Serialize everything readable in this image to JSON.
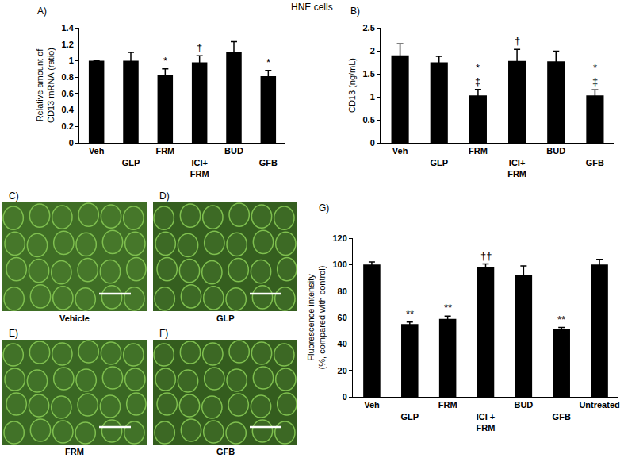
{
  "figure_title": "HNE cells",
  "chart_data": [
    {
      "type": "bar",
      "title": "A)",
      "y_label": [
        "Relative amount of",
        "CD13 mRNA (ratio)"
      ],
      "categories": [
        "Veh",
        "GLP",
        "FRM",
        "ICI+ FRM",
        "BUD",
        "GFB"
      ],
      "values": [
        1.0,
        1.0,
        0.82,
        0.98,
        1.1,
        0.81
      ],
      "error": [
        0,
        0.1,
        0.08,
        0.08,
        0.13,
        0.07
      ],
      "color": "#000000",
      "ylim": [
        0,
        1.4
      ],
      "yticks": [
        0,
        0.2,
        0.4,
        0.6,
        0.8,
        1,
        1.2,
        1.4
      ],
      "grid": false,
      "annotations": [
        {
          "category": "FRM",
          "text": "*"
        },
        {
          "category": "ICI+ FRM",
          "text": "†"
        },
        {
          "category": "GFB",
          "text": "*"
        }
      ]
    },
    {
      "type": "bar",
      "title": "B)",
      "y_label": [
        "CD13 (ng/mL)"
      ],
      "categories": [
        "Veh",
        "GLP",
        "FRM",
        "ICI+ FRM",
        "BUD",
        "GFB"
      ],
      "values": [
        1.9,
        1.75,
        1.03,
        1.78,
        1.77,
        1.03
      ],
      "error": [
        0.25,
        0.13,
        0.13,
        0.25,
        0.22,
        0.12
      ],
      "color": "#000000",
      "ylim": [
        0,
        2.5
      ],
      "yticks": [
        0,
        0.5,
        1,
        1.5,
        2,
        2.5
      ],
      "grid": false,
      "annotations": [
        {
          "category": "FRM",
          "text": [
            "*",
            "‡"
          ]
        },
        {
          "category": "ICI+ FRM",
          "text": "†"
        },
        {
          "category": "GFB",
          "text": [
            "*",
            "‡"
          ]
        }
      ]
    },
    {
      "type": "bar",
      "title": "G)",
      "y_label": [
        "Fluorescence intensity",
        "(%, compared with control)"
      ],
      "categories": [
        "Veh",
        "GLP",
        "FRM",
        "ICI + FRM",
        "BUD",
        "GFB",
        "Untreated"
      ],
      "values": [
        100,
        55,
        59,
        98,
        92,
        51,
        100
      ],
      "error": [
        2,
        1.5,
        2,
        2.5,
        7,
        1.5,
        4
      ],
      "color": "#000000",
      "ylim": [
        0,
        120
      ],
      "yticks": [
        0,
        20,
        40,
        60,
        80,
        100,
        120
      ],
      "grid": false,
      "annotations": [
        {
          "category": "GLP",
          "text": "**"
        },
        {
          "category": "FRM",
          "text": "**"
        },
        {
          "category": "ICI + FRM",
          "text": "††"
        },
        {
          "category": "GFB",
          "text": "**"
        }
      ]
    }
  ],
  "image_panels": [
    {
      "panel": "C)",
      "label": "Vehicle"
    },
    {
      "panel": "D)",
      "label": "GLP"
    },
    {
      "panel": "E)",
      "label": "FRM"
    },
    {
      "panel": "F)",
      "label": "GFB"
    }
  ]
}
